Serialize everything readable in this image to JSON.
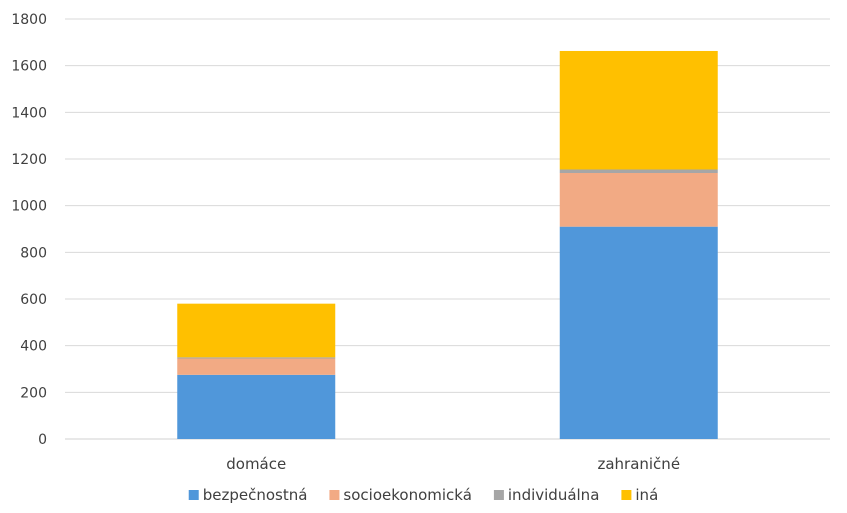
{
  "chart_data": {
    "type": "bar",
    "stacked": true,
    "title": "",
    "xlabel": "",
    "ylabel": "",
    "categories": [
      "domáce",
      "zahraničné"
    ],
    "ylim": [
      0,
      1800
    ],
    "yticks": [
      0,
      200,
      400,
      600,
      800,
      1000,
      1200,
      1400,
      1600,
      1800
    ],
    "grid": true,
    "legend_position": "bottom",
    "series": [
      {
        "name": "bezpečnostná",
        "color": "#5097DA",
        "values": [
          275,
          910
        ]
      },
      {
        "name": "socioekonomická",
        "color": "#F2AA84",
        "values": [
          70,
          230
        ]
      },
      {
        "name": "individuálna",
        "color": "#A6A6A6",
        "values": [
          5,
          15
        ]
      },
      {
        "name": "iná",
        "color": "#FFC000",
        "values": [
          230,
          508
        ]
      }
    ]
  }
}
